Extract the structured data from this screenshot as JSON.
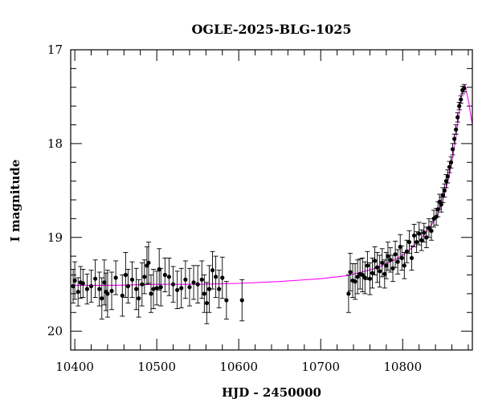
{
  "chart_data": {
    "type": "scatter",
    "title": "OGLE-2025-BLG-1025",
    "xlabel": "HJD - 2450000",
    "ylabel": "I magnitude",
    "xlim": [
      10395,
      10885
    ],
    "ylim": [
      17.0,
      20.2
    ],
    "y_inverted": true,
    "x_ticks": [
      10400,
      10500,
      10600,
      10700,
      10800
    ],
    "x_tick_labels": [
      "10400",
      "10500",
      "10600",
      "10700",
      "10800"
    ],
    "y_ticks": [
      17,
      18,
      19,
      20
    ],
    "y_tick_labels": [
      "17",
      "18",
      "19",
      "20"
    ],
    "grid": false,
    "colors": {
      "points": "#000000",
      "model": "#ff00ff"
    },
    "model": {
      "name": "",
      "x": [
        10395,
        10450,
        10500,
        10550,
        10600,
        10650,
        10700,
        10730,
        10750,
        10770,
        10790,
        10800,
        10810,
        10820,
        10830,
        10840,
        10845,
        10850,
        10855,
        10860,
        10865,
        10870,
        10873,
        10876,
        10880,
        10885
      ],
      "y": [
        19.51,
        19.51,
        19.5,
        19.5,
        19.49,
        19.47,
        19.44,
        19.41,
        19.37,
        19.32,
        19.24,
        19.19,
        19.12,
        19.04,
        18.93,
        18.8,
        18.7,
        18.57,
        18.41,
        18.2,
        17.93,
        17.6,
        17.42,
        17.38,
        17.53,
        17.8
      ]
    },
    "series": [
      {
        "name": "",
        "points": [
          {
            "x": 10398,
            "y": 19.52,
            "err": 0.18
          },
          {
            "x": 10400,
            "y": 19.46,
            "err": 0.2
          },
          {
            "x": 10404,
            "y": 19.58,
            "err": 0.15
          },
          {
            "x": 10407,
            "y": 19.48,
            "err": 0.17
          },
          {
            "x": 10410,
            "y": 19.49,
            "err": 0.15
          },
          {
            "x": 10415,
            "y": 19.55,
            "err": 0.16
          },
          {
            "x": 10420,
            "y": 19.52,
            "err": 0.17
          },
          {
            "x": 10425,
            "y": 19.44,
            "err": 0.2
          },
          {
            "x": 10430,
            "y": 19.55,
            "err": 0.18
          },
          {
            "x": 10433,
            "y": 19.65,
            "err": 0.22
          },
          {
            "x": 10436,
            "y": 19.48,
            "err": 0.24
          },
          {
            "x": 10438,
            "y": 19.58,
            "err": 0.2
          },
          {
            "x": 10440,
            "y": 19.6,
            "err": 0.25
          },
          {
            "x": 10445,
            "y": 19.57,
            "err": 0.2
          },
          {
            "x": 10450,
            "y": 19.43,
            "err": 0.18
          },
          {
            "x": 10458,
            "y": 19.62,
            "err": 0.22
          },
          {
            "x": 10462,
            "y": 19.4,
            "err": 0.24
          },
          {
            "x": 10465,
            "y": 19.52,
            "err": 0.18
          },
          {
            "x": 10470,
            "y": 19.45,
            "err": 0.19
          },
          {
            "x": 10475,
            "y": 19.55,
            "err": 0.22
          },
          {
            "x": 10478,
            "y": 19.65,
            "err": 0.2
          },
          {
            "x": 10482,
            "y": 19.5,
            "err": 0.23
          },
          {
            "x": 10485,
            "y": 19.42,
            "err": 0.18
          },
          {
            "x": 10488,
            "y": 19.3,
            "err": 0.2
          },
          {
            "x": 10490,
            "y": 19.27,
            "err": 0.22
          },
          {
            "x": 10493,
            "y": 19.6,
            "err": 0.2
          },
          {
            "x": 10496,
            "y": 19.55,
            "err": 0.21
          },
          {
            "x": 10500,
            "y": 19.54,
            "err": 0.18
          },
          {
            "x": 10503,
            "y": 19.34,
            "err": 0.22
          },
          {
            "x": 10505,
            "y": 19.53,
            "err": 0.2
          },
          {
            "x": 10510,
            "y": 19.4,
            "err": 0.18
          },
          {
            "x": 10515,
            "y": 19.42,
            "err": 0.2
          },
          {
            "x": 10520,
            "y": 19.5,
            "err": 0.19
          },
          {
            "x": 10525,
            "y": 19.56,
            "err": 0.2
          },
          {
            "x": 10530,
            "y": 19.54,
            "err": 0.21
          },
          {
            "x": 10535,
            "y": 19.45,
            "err": 0.2
          },
          {
            "x": 10540,
            "y": 19.53,
            "err": 0.2
          },
          {
            "x": 10545,
            "y": 19.48,
            "err": 0.18
          },
          {
            "x": 10550,
            "y": 19.5,
            "err": 0.2
          },
          {
            "x": 10555,
            "y": 19.45,
            "err": 0.2
          },
          {
            "x": 10558,
            "y": 19.6,
            "err": 0.2
          },
          {
            "x": 10561,
            "y": 19.7,
            "err": 0.22
          },
          {
            "x": 10564,
            "y": 19.55,
            "err": 0.25
          },
          {
            "x": 10568,
            "y": 19.35,
            "err": 0.2
          },
          {
            "x": 10572,
            "y": 19.42,
            "err": 0.22
          },
          {
            "x": 10576,
            "y": 19.55,
            "err": 0.2
          },
          {
            "x": 10580,
            "y": 19.43,
            "err": 0.22
          },
          {
            "x": 10585,
            "y": 19.67,
            "err": 0.2
          },
          {
            "x": 10604,
            "y": 19.67,
            "err": 0.22
          },
          {
            "x": 10734,
            "y": 19.6,
            "err": 0.2
          },
          {
            "x": 10736,
            "y": 19.37,
            "err": 0.2
          },
          {
            "x": 10739,
            "y": 19.46,
            "err": 0.18
          },
          {
            "x": 10742,
            "y": 19.47,
            "err": 0.19
          },
          {
            "x": 10745,
            "y": 19.42,
            "err": 0.18
          },
          {
            "x": 10748,
            "y": 19.39,
            "err": 0.16
          },
          {
            "x": 10751,
            "y": 19.4,
            "err": 0.18
          },
          {
            "x": 10754,
            "y": 19.43,
            "err": 0.17
          },
          {
            "x": 10757,
            "y": 19.3,
            "err": 0.15
          },
          {
            "x": 10760,
            "y": 19.44,
            "err": 0.17
          },
          {
            "x": 10763,
            "y": 19.38,
            "err": 0.16
          },
          {
            "x": 10766,
            "y": 19.25,
            "err": 0.15
          },
          {
            "x": 10769,
            "y": 19.32,
            "err": 0.16
          },
          {
            "x": 10772,
            "y": 19.36,
            "err": 0.17
          },
          {
            "x": 10775,
            "y": 19.27,
            "err": 0.15
          },
          {
            "x": 10778,
            "y": 19.39,
            "err": 0.15
          },
          {
            "x": 10780,
            "y": 19.3,
            "err": 0.14
          },
          {
            "x": 10782,
            "y": 19.2,
            "err": 0.15
          },
          {
            "x": 10785,
            "y": 19.24,
            "err": 0.13
          },
          {
            "x": 10788,
            "y": 19.33,
            "err": 0.14
          },
          {
            "x": 10791,
            "y": 19.18,
            "err": 0.14
          },
          {
            "x": 10794,
            "y": 19.26,
            "err": 0.13
          },
          {
            "x": 10797,
            "y": 19.1,
            "err": 0.13
          },
          {
            "x": 10799,
            "y": 19.22,
            "err": 0.13
          },
          {
            "x": 10802,
            "y": 19.3,
            "err": 0.14
          },
          {
            "x": 10805,
            "y": 19.15,
            "err": 0.12
          },
          {
            "x": 10808,
            "y": 19.05,
            "err": 0.12
          },
          {
            "x": 10811,
            "y": 19.22,
            "err": 0.13
          },
          {
            "x": 10814,
            "y": 18.98,
            "err": 0.12
          },
          {
            "x": 10817,
            "y": 19.05,
            "err": 0.11
          },
          {
            "x": 10820,
            "y": 18.96,
            "err": 0.12
          },
          {
            "x": 10823,
            "y": 19.03,
            "err": 0.11
          },
          {
            "x": 10826,
            "y": 18.95,
            "err": 0.1
          },
          {
            "x": 10829,
            "y": 19.0,
            "err": 0.11
          },
          {
            "x": 10832,
            "y": 18.9,
            "err": 0.1
          },
          {
            "x": 10835,
            "y": 18.93,
            "err": 0.1
          },
          {
            "x": 10838,
            "y": 18.8,
            "err": 0.09
          },
          {
            "x": 10841,
            "y": 18.78,
            "err": 0.09
          },
          {
            "x": 10843,
            "y": 18.7,
            "err": 0.08
          },
          {
            "x": 10845,
            "y": 18.62,
            "err": 0.08
          },
          {
            "x": 10847,
            "y": 18.65,
            "err": 0.08
          },
          {
            "x": 10849,
            "y": 18.55,
            "err": 0.08
          },
          {
            "x": 10851,
            "y": 18.5,
            "err": 0.07
          },
          {
            "x": 10853,
            "y": 18.4,
            "err": 0.07
          },
          {
            "x": 10855,
            "y": 18.35,
            "err": 0.07
          },
          {
            "x": 10857,
            "y": 18.25,
            "err": 0.06
          },
          {
            "x": 10859,
            "y": 18.2,
            "err": 0.06
          },
          {
            "x": 10861,
            "y": 18.06,
            "err": 0.06
          },
          {
            "x": 10863,
            "y": 17.95,
            "err": 0.05
          },
          {
            "x": 10865,
            "y": 17.85,
            "err": 0.05
          },
          {
            "x": 10867,
            "y": 17.72,
            "err": 0.05
          },
          {
            "x": 10869,
            "y": 17.6,
            "err": 0.04
          },
          {
            "x": 10871,
            "y": 17.53,
            "err": 0.04
          },
          {
            "x": 10873,
            "y": 17.43,
            "err": 0.04
          },
          {
            "x": 10875,
            "y": 17.41,
            "err": 0.04
          }
        ]
      }
    ]
  }
}
